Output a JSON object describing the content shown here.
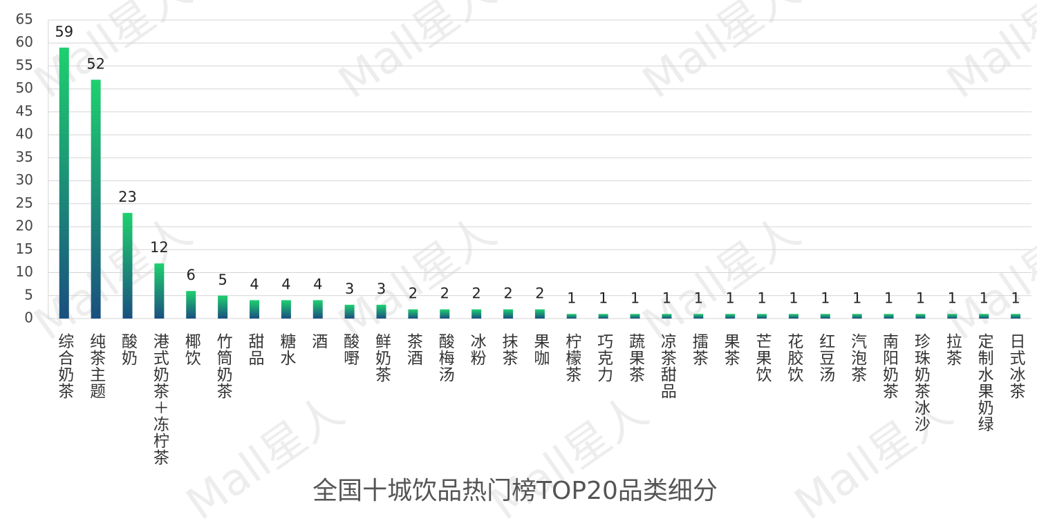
{
  "chart_data": {
    "type": "bar",
    "title": "全国十城饮品热门榜TOP20品类细分",
    "watermark": "Mall星人",
    "categories": [
      "综合奶茶",
      "纯茶主题",
      "酸奶",
      "港式奶茶＋冻柠茶",
      "椰饮",
      "竹筒奶茶",
      "甜品",
      "糖水",
      "酒",
      "酸嘢",
      "鲜奶茶",
      "茶酒",
      "酸梅汤",
      "冰粉",
      "抹茶",
      "果咖",
      "柠檬茶",
      "巧克力",
      "蔬果茶",
      "凉茶甜品",
      "擂茶",
      "果茶",
      "芒果饮",
      "花胶饮",
      "红豆汤",
      "汽泡茶",
      "南阳奶茶",
      "珍珠奶茶冰沙",
      "拉茶",
      "定制水果奶绿",
      "日式冰茶"
    ],
    "values": [
      59,
      52,
      23,
      12,
      6,
      5,
      4,
      4,
      4,
      3,
      3,
      2,
      2,
      2,
      2,
      2,
      1,
      1,
      1,
      1,
      1,
      1,
      1,
      1,
      1,
      1,
      1,
      1,
      1,
      1,
      1
    ],
    "color": [
      "#1fd06f",
      "#1a4f7f"
    ],
    "ylim": [
      0,
      65
    ],
    "yticks": [
      0,
      5,
      10,
      15,
      20,
      25,
      30,
      35,
      40,
      45,
      50,
      55,
      60,
      65
    ],
    "grid": true
  }
}
